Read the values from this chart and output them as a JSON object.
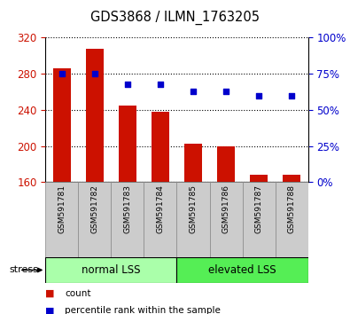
{
  "title": "GDS3868 / ILMN_1763205",
  "categories": [
    "GSM591781",
    "GSM591782",
    "GSM591783",
    "GSM591784",
    "GSM591785",
    "GSM591786",
    "GSM591787",
    "GSM591788"
  ],
  "bar_values": [
    286,
    308,
    245,
    238,
    203,
    200,
    168,
    168
  ],
  "percentile_values": [
    75,
    75,
    68,
    68,
    63,
    63,
    60,
    60
  ],
  "bar_color": "#cc1100",
  "dot_color": "#0000cc",
  "ylim_left": [
    160,
    320
  ],
  "ylim_right": [
    0,
    100
  ],
  "yticks_left": [
    160,
    200,
    240,
    280,
    320
  ],
  "yticks_right": [
    0,
    25,
    50,
    75,
    100
  ],
  "ytick_labels_right": [
    "0%",
    "25%",
    "50%",
    "75%",
    "100%"
  ],
  "group1_label": "normal LSS",
  "group2_label": "elevated LSS",
  "group1_indices": [
    0,
    1,
    2,
    3
  ],
  "group2_indices": [
    4,
    5,
    6,
    7
  ],
  "group1_bg": "#aaffaa",
  "group2_bg": "#55ee55",
  "stress_label": "stress",
  "legend_count_label": "count",
  "legend_pct_label": "percentile rank within the sample",
  "bar_width": 0.55,
  "tick_label_color_left": "#cc1100",
  "tick_label_color_right": "#0000cc",
  "xlabel_bg": "#cccccc",
  "figsize": [
    3.95,
    3.54
  ],
  "dpi": 100
}
